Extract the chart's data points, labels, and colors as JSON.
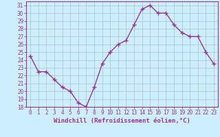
{
  "x": [
    0,
    1,
    2,
    3,
    4,
    5,
    6,
    7,
    8,
    9,
    10,
    11,
    12,
    13,
    14,
    15,
    16,
    17,
    18,
    19,
    20,
    21,
    22,
    23
  ],
  "y": [
    24.5,
    22.5,
    22.5,
    21.5,
    20.5,
    20.0,
    18.5,
    18.0,
    20.5,
    23.5,
    25.0,
    26.0,
    26.5,
    28.5,
    30.5,
    31.0,
    30.0,
    30.0,
    28.5,
    27.5,
    27.0,
    27.0,
    25.0,
    23.5
  ],
  "line_color": "#993399",
  "marker": "+",
  "markersize": 4,
  "linewidth": 1.0,
  "bg_color": "#cceeff",
  "grid_color": "#aacccc",
  "ylim": [
    18,
    31.5
  ],
  "xlim": [
    -0.5,
    23.5
  ],
  "yticks": [
    18,
    19,
    20,
    21,
    22,
    23,
    24,
    25,
    26,
    27,
    28,
    29,
    30,
    31
  ],
  "xticks": [
    0,
    1,
    2,
    3,
    4,
    5,
    6,
    7,
    8,
    9,
    10,
    11,
    12,
    13,
    14,
    15,
    16,
    17,
    18,
    19,
    20,
    21,
    22,
    23
  ],
  "tick_fontsize": 5.5,
  "xlabel_fontsize": 6.5,
  "xlabel": "Windchill (Refroidissement éolien,°C)"
}
